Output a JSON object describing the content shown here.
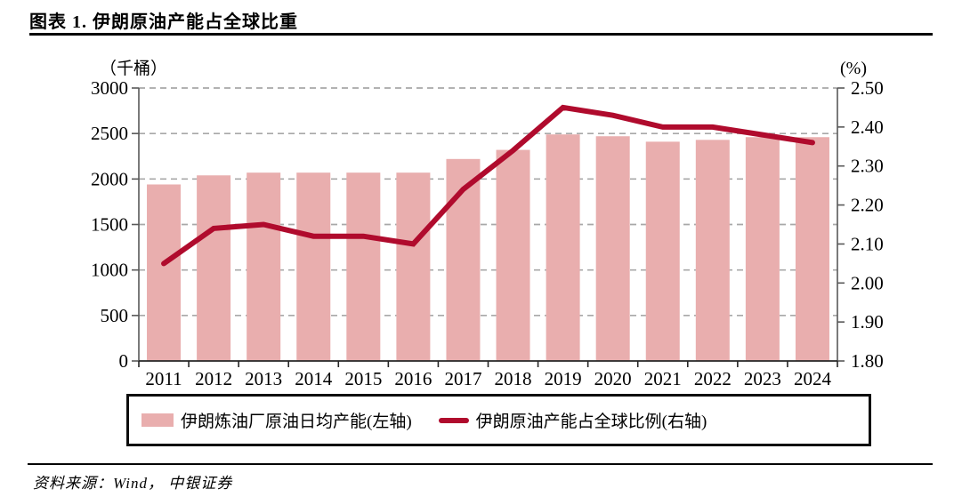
{
  "page": {
    "title": "图表 1. 伊朗原油产能占全球比重",
    "source": "资料来源：Wind， 中银证券"
  },
  "colors": {
    "bar_fill": "#e9aeae",
    "line_stroke": "#b00b2d",
    "gridline": "#a8a8a8",
    "side_axis": "#595959",
    "bottom_axis": "#262626",
    "text": "#000000"
  },
  "chart_data": {
    "type": "bar",
    "subtype": "bar-plus-line-dual-axis",
    "categories": [
      "2011",
      "2012",
      "2013",
      "2014",
      "2015",
      "2016",
      "2017",
      "2018",
      "2019",
      "2020",
      "2021",
      "2022",
      "2023",
      "2024"
    ],
    "series": [
      {
        "name": "伊朗炼油厂原油日均产能(左轴)",
        "type": "bar",
        "axis": "left",
        "color": "#e9aeae",
        "values": [
          1940,
          2040,
          2070,
          2070,
          2070,
          2070,
          2220,
          2320,
          2490,
          2470,
          2410,
          2430,
          2460,
          2460
        ]
      },
      {
        "name": "伊朗原油产能占全球比例(右轴)",
        "type": "line",
        "axis": "right",
        "color": "#b00b2d",
        "values": [
          2.05,
          2.14,
          2.15,
          2.12,
          2.12,
          2.1,
          2.24,
          2.34,
          2.45,
          2.43,
          2.4,
          2.4,
          2.38,
          2.36
        ]
      }
    ],
    "left_axis": {
      "unit": "（千桶）",
      "min": 0,
      "max": 3000,
      "ticks": [
        0,
        500,
        1000,
        1500,
        2000,
        2500,
        3000
      ],
      "tick_labels": [
        "0",
        "500",
        "1000",
        "1500",
        "2000",
        "2500",
        "3000"
      ]
    },
    "right_axis": {
      "unit": "(%)",
      "min": 1.8,
      "max": 2.5,
      "ticks": [
        1.8,
        1.9,
        2.0,
        2.1,
        2.2,
        2.3,
        2.4,
        2.5
      ],
      "tick_labels": [
        "1.80",
        "1.90",
        "2.00",
        "2.10",
        "2.20",
        "2.30",
        "2.40",
        "2.50"
      ]
    },
    "grid": "horizontal dashed at left-axis ticks (except 0)",
    "legend_position": "bottom-box"
  }
}
